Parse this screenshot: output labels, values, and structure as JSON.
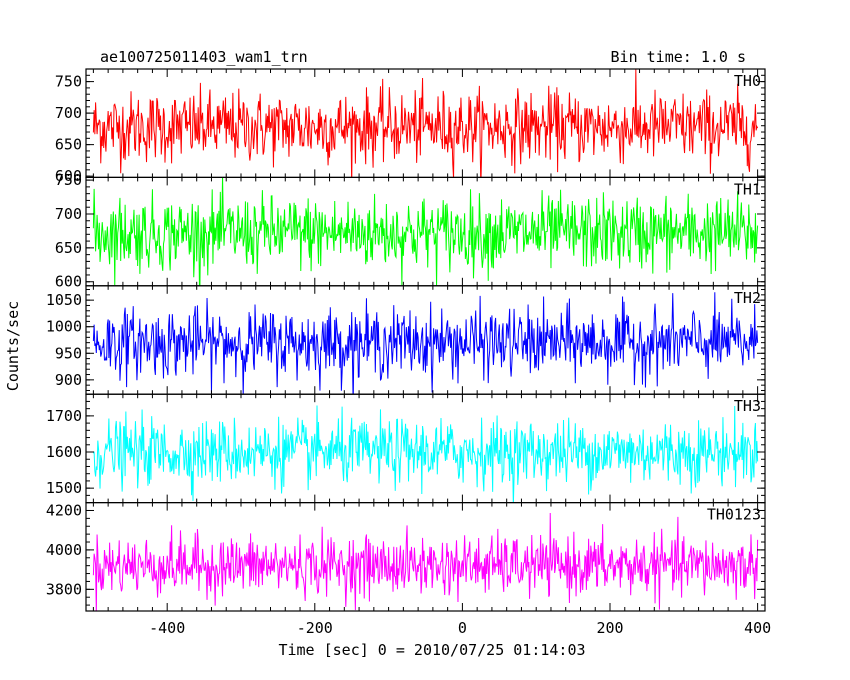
{
  "chart_data": {
    "type": "line",
    "title_left": "ae100725011403_wam1_trn",
    "title_right": "Bin time: 1.0 s",
    "xlabel": "Time [sec] 0 = 2010/07/25 01:14:03",
    "ylabel": "Counts/sec",
    "xlim": [
      -510,
      410
    ],
    "x_ticks": [
      -400,
      -200,
      0,
      200,
      400
    ],
    "x_start": -500,
    "x_end": 400,
    "bin": 1.0,
    "panels": [
      {
        "name": "TH0",
        "color": "#ff0000",
        "ylim": [
          598,
          770
        ],
        "y_ticks": [
          600,
          650,
          700,
          750
        ],
        "mean": 678,
        "sigma": 28
      },
      {
        "name": "TH1",
        "color": "#00ff00",
        "ylim": [
          594,
          754
        ],
        "y_ticks": [
          600,
          650,
          700,
          750
        ],
        "mean": 672,
        "sigma": 27
      },
      {
        "name": "TH2",
        "color": "#0000ff",
        "ylim": [
          873,
          1077
        ],
        "y_ticks": [
          900,
          950,
          1000,
          1050
        ],
        "mean": 970,
        "sigma": 32
      },
      {
        "name": "TH3",
        "color": "#00ffff",
        "ylim": [
          1460,
          1760
        ],
        "y_ticks": [
          1500,
          1600,
          1700
        ],
        "mean": 1600,
        "sigma": 45
      },
      {
        "name": "TH0123",
        "color": "#ff00ff",
        "ylim": [
          3690,
          4240
        ],
        "y_ticks": [
          3800,
          4000,
          4200
        ],
        "mean": 3920,
        "sigma": 75
      }
    ]
  }
}
